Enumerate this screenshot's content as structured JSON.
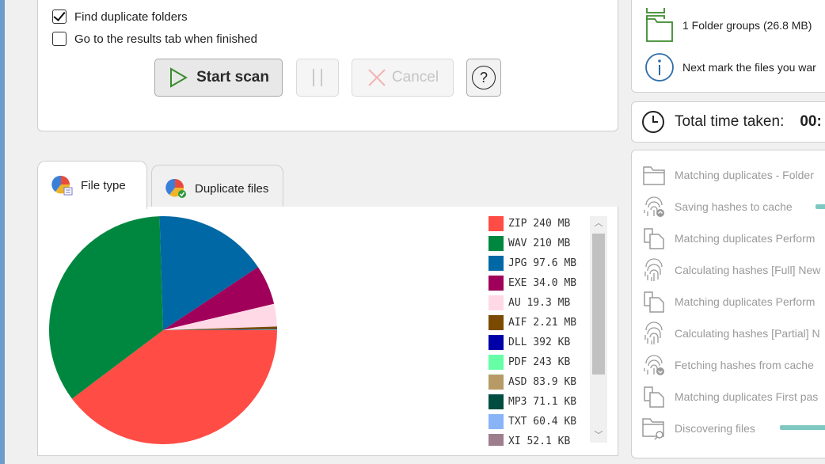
{
  "options": {
    "find_duplicate_folders": {
      "label": "Find duplicate folders",
      "checked": true
    },
    "goto_results": {
      "label": "Go to the results tab when finished",
      "checked": false
    }
  },
  "buttons": {
    "start": "Start scan",
    "cancel": "Cancel",
    "help": "?"
  },
  "tabs": [
    {
      "label": "File type",
      "active": true
    },
    {
      "label": "Duplicate files",
      "active": false
    }
  ],
  "chart_data": {
    "type": "pie",
    "categories": [
      "ZIP",
      "WAV",
      "JPG",
      "EXE",
      "AU",
      "AIF",
      "DLL",
      "PDF",
      "ASD",
      "MP3",
      "TXT",
      "XI"
    ],
    "values_mb": [
      240,
      210,
      97.6,
      34.0,
      19.3,
      2.21,
      0.392,
      0.243,
      0.0839,
      0.0711,
      0.0604,
      0.0521
    ],
    "labels": [
      "ZIP 240 MB",
      "WAV 210 MB",
      "JPG 97.6 MB",
      "EXE 34.0 MB",
      "AU 19.3 MB",
      "AIF 2.21 MB",
      "DLL 392 KB",
      "PDF 243 KB",
      "ASD 83.9 KB",
      "MP3 71.1 KB",
      "TXT 60.4 KB",
      "XI 52.1 KB"
    ],
    "colors": [
      "#ff4c45",
      "#00873f",
      "#0068a5",
      "#a0005a",
      "#ffd9e6",
      "#7a4a00",
      "#0000a8",
      "#66ffa5",
      "#b89a66",
      "#004d40",
      "#8ab4f8",
      "#9e7e8e"
    ],
    "legend_position": "right"
  },
  "right": {
    "folder_groups": "1 Folder groups (26.8 MB)",
    "next_mark": "Next mark the files you war",
    "total_time_label": "Total time taken:",
    "total_time_value": "00:",
    "steps": [
      {
        "label": "Matching duplicates - Folder",
        "icon": "folder-icon",
        "progress": null
      },
      {
        "label": "Saving hashes to cache",
        "icon": "fingerprint-upload-icon",
        "progress": 0.1
      },
      {
        "label": "Matching duplicates Perform",
        "icon": "copy-icon",
        "progress": null
      },
      {
        "label": "Calculating hashes [Full] New",
        "icon": "fingerprint-icon",
        "progress": null
      },
      {
        "label": "Matching duplicates Perform",
        "icon": "copy-icon",
        "progress": null
      },
      {
        "label": "Calculating hashes [Partial] N",
        "icon": "fingerprint-icon",
        "progress": null
      },
      {
        "label": "Fetching hashes from cache",
        "icon": "fingerprint-download-icon",
        "progress": null
      },
      {
        "label": "Matching duplicates First pas",
        "icon": "copy-icon",
        "progress": null
      },
      {
        "label": "Discovering files",
        "icon": "folder-search-icon",
        "progress": 1.0
      }
    ]
  }
}
